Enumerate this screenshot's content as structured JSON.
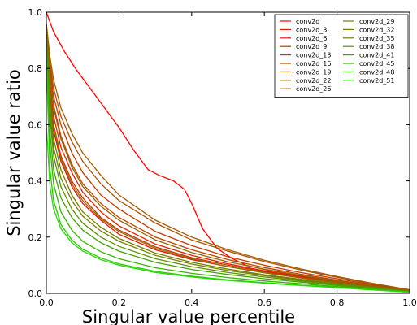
{
  "chart_data": {
    "type": "line",
    "title": "",
    "xlabel": "Singular value percentile",
    "ylabel": "Singular value ratio",
    "xlim": [
      0.0,
      1.0
    ],
    "ylim": [
      0.0,
      1.0
    ],
    "xticks": [
      "0.0",
      "0.2",
      "0.4",
      "0.6",
      "0.8",
      "1.0"
    ],
    "yticks": [
      "0.0",
      "0.2",
      "0.4",
      "0.6",
      "0.8",
      "1.0"
    ],
    "grid": false,
    "legend_position": "top-right",
    "legend_columns": 2,
    "series": [
      {
        "name": "conv2d",
        "color": "#ff0000",
        "points": [
          [
            0,
            1.0
          ],
          [
            0.02,
            0.93
          ],
          [
            0.05,
            0.86
          ],
          [
            0.08,
            0.8
          ],
          [
            0.12,
            0.73
          ],
          [
            0.16,
            0.66
          ],
          [
            0.2,
            0.59
          ],
          [
            0.24,
            0.51
          ],
          [
            0.28,
            0.44
          ],
          [
            0.31,
            0.42
          ],
          [
            0.35,
            0.4
          ],
          [
            0.38,
            0.37
          ],
          [
            0.4,
            0.32
          ],
          [
            0.43,
            0.23
          ],
          [
            0.47,
            0.16
          ],
          [
            0.51,
            0.125
          ],
          [
            0.55,
            0.1
          ],
          [
            0.6,
            0.085
          ],
          [
            0.7,
            0.063
          ],
          [
            0.8,
            0.044
          ],
          [
            0.9,
            0.027
          ],
          [
            1.0,
            0.012
          ]
        ]
      },
      {
        "name": "conv2d_3",
        "color": "#e81500",
        "points": [
          [
            0,
            0.94
          ],
          [
            0.01,
            0.7
          ],
          [
            0.02,
            0.58
          ],
          [
            0.04,
            0.47
          ],
          [
            0.07,
            0.38
          ],
          [
            0.1,
            0.32
          ],
          [
            0.15,
            0.26
          ],
          [
            0.2,
            0.21
          ],
          [
            0.3,
            0.155
          ],
          [
            0.4,
            0.12
          ],
          [
            0.5,
            0.095
          ],
          [
            0.6,
            0.073
          ],
          [
            0.7,
            0.055
          ],
          [
            0.8,
            0.038
          ],
          [
            0.9,
            0.022
          ],
          [
            1.0,
            0.008
          ]
        ]
      },
      {
        "name": "conv2d_6",
        "color": "#dc2200",
        "points": [
          [
            0,
            0.93
          ],
          [
            0.01,
            0.74
          ],
          [
            0.02,
            0.63
          ],
          [
            0.04,
            0.52
          ],
          [
            0.07,
            0.43
          ],
          [
            0.1,
            0.36
          ],
          [
            0.15,
            0.29
          ],
          [
            0.2,
            0.24
          ],
          [
            0.3,
            0.175
          ],
          [
            0.4,
            0.135
          ],
          [
            0.5,
            0.105
          ],
          [
            0.6,
            0.08
          ],
          [
            0.7,
            0.06
          ],
          [
            0.8,
            0.042
          ],
          [
            0.9,
            0.025
          ],
          [
            1.0,
            0.009
          ]
        ]
      },
      {
        "name": "conv2d_9",
        "color": "#d02e00",
        "points": [
          [
            0,
            0.92
          ],
          [
            0.01,
            0.72
          ],
          [
            0.02,
            0.6
          ],
          [
            0.04,
            0.49
          ],
          [
            0.07,
            0.4
          ],
          [
            0.1,
            0.34
          ],
          [
            0.15,
            0.27
          ],
          [
            0.2,
            0.225
          ],
          [
            0.3,
            0.165
          ],
          [
            0.4,
            0.127
          ],
          [
            0.5,
            0.1
          ],
          [
            0.6,
            0.077
          ],
          [
            0.7,
            0.058
          ],
          [
            0.8,
            0.04
          ],
          [
            0.9,
            0.023
          ],
          [
            1.0,
            0.008
          ]
        ]
      },
      {
        "name": "conv2d_13",
        "color": "#c43a00",
        "points": [
          [
            0,
            0.96
          ],
          [
            0.01,
            0.8
          ],
          [
            0.02,
            0.7
          ],
          [
            0.04,
            0.6
          ],
          [
            0.07,
            0.5
          ],
          [
            0.1,
            0.43
          ],
          [
            0.15,
            0.35
          ],
          [
            0.2,
            0.3
          ],
          [
            0.3,
            0.22
          ],
          [
            0.4,
            0.17
          ],
          [
            0.5,
            0.13
          ],
          [
            0.6,
            0.1
          ],
          [
            0.7,
            0.074
          ],
          [
            0.8,
            0.052
          ],
          [
            0.9,
            0.03
          ],
          [
            1.0,
            0.011
          ]
        ]
      },
      {
        "name": "conv2d_16",
        "color": "#b84600",
        "points": [
          [
            0,
            0.95
          ],
          [
            0.01,
            0.78
          ],
          [
            0.02,
            0.67
          ],
          [
            0.04,
            0.56
          ],
          [
            0.07,
            0.46
          ],
          [
            0.1,
            0.39
          ],
          [
            0.15,
            0.32
          ],
          [
            0.2,
            0.27
          ],
          [
            0.3,
            0.2
          ],
          [
            0.4,
            0.155
          ],
          [
            0.5,
            0.12
          ],
          [
            0.6,
            0.092
          ],
          [
            0.7,
            0.068
          ],
          [
            0.8,
            0.047
          ],
          [
            0.9,
            0.027
          ],
          [
            1.0,
            0.01
          ]
        ]
      },
      {
        "name": "conv2d_19",
        "color": "#ac5200",
        "points": [
          [
            0,
            0.95
          ],
          [
            0.01,
            0.82
          ],
          [
            0.02,
            0.73
          ],
          [
            0.04,
            0.63
          ],
          [
            0.07,
            0.54
          ],
          [
            0.1,
            0.47
          ],
          [
            0.15,
            0.39
          ],
          [
            0.2,
            0.33
          ],
          [
            0.3,
            0.25
          ],
          [
            0.4,
            0.19
          ],
          [
            0.5,
            0.15
          ],
          [
            0.6,
            0.113
          ],
          [
            0.7,
            0.083
          ],
          [
            0.8,
            0.057
          ],
          [
            0.9,
            0.033
          ],
          [
            1.0,
            0.012
          ]
        ]
      },
      {
        "name": "conv2d_22",
        "color": "#a05c00",
        "points": [
          [
            0,
            0.96
          ],
          [
            0.01,
            0.84
          ],
          [
            0.02,
            0.76
          ],
          [
            0.04,
            0.66
          ],
          [
            0.07,
            0.57
          ],
          [
            0.1,
            0.5
          ],
          [
            0.15,
            0.42
          ],
          [
            0.2,
            0.35
          ],
          [
            0.3,
            0.26
          ],
          [
            0.4,
            0.2
          ],
          [
            0.5,
            0.155
          ],
          [
            0.6,
            0.118
          ],
          [
            0.7,
            0.087
          ],
          [
            0.8,
            0.06
          ],
          [
            0.9,
            0.035
          ],
          [
            1.0,
            0.013
          ]
        ]
      },
      {
        "name": "conv2d_26",
        "color": "#946600",
        "points": [
          [
            0,
            0.94
          ],
          [
            0.01,
            0.77
          ],
          [
            0.02,
            0.66
          ],
          [
            0.04,
            0.55
          ],
          [
            0.07,
            0.45
          ],
          [
            0.1,
            0.38
          ],
          [
            0.15,
            0.31
          ],
          [
            0.2,
            0.26
          ],
          [
            0.3,
            0.19
          ],
          [
            0.4,
            0.145
          ],
          [
            0.5,
            0.112
          ],
          [
            0.6,
            0.086
          ],
          [
            0.7,
            0.064
          ],
          [
            0.8,
            0.044
          ],
          [
            0.9,
            0.026
          ],
          [
            1.0,
            0.009
          ]
        ]
      },
      {
        "name": "conv2d_29",
        "color": "#887000",
        "points": [
          [
            0,
            0.93
          ],
          [
            0.01,
            0.72
          ],
          [
            0.02,
            0.6
          ],
          [
            0.04,
            0.48
          ],
          [
            0.07,
            0.39
          ],
          [
            0.1,
            0.33
          ],
          [
            0.15,
            0.265
          ],
          [
            0.2,
            0.22
          ],
          [
            0.3,
            0.16
          ],
          [
            0.4,
            0.123
          ],
          [
            0.5,
            0.095
          ],
          [
            0.6,
            0.073
          ],
          [
            0.7,
            0.055
          ],
          [
            0.8,
            0.038
          ],
          [
            0.9,
            0.022
          ],
          [
            1.0,
            0.008
          ]
        ]
      },
      {
        "name": "conv2d_32",
        "color": "#7c7a00",
        "points": [
          [
            0,
            0.92
          ],
          [
            0.01,
            0.68
          ],
          [
            0.02,
            0.55
          ],
          [
            0.04,
            0.44
          ],
          [
            0.07,
            0.35
          ],
          [
            0.1,
            0.29
          ],
          [
            0.15,
            0.235
          ],
          [
            0.2,
            0.195
          ],
          [
            0.3,
            0.143
          ],
          [
            0.4,
            0.11
          ],
          [
            0.5,
            0.086
          ],
          [
            0.6,
            0.066
          ],
          [
            0.7,
            0.05
          ],
          [
            0.8,
            0.035
          ],
          [
            0.9,
            0.021
          ],
          [
            1.0,
            0.007
          ]
        ]
      },
      {
        "name": "conv2d_35",
        "color": "#708400",
        "points": [
          [
            0,
            0.91
          ],
          [
            0.01,
            0.65
          ],
          [
            0.02,
            0.52
          ],
          [
            0.04,
            0.41
          ],
          [
            0.07,
            0.33
          ],
          [
            0.1,
            0.275
          ],
          [
            0.15,
            0.222
          ],
          [
            0.2,
            0.185
          ],
          [
            0.3,
            0.135
          ],
          [
            0.4,
            0.104
          ],
          [
            0.5,
            0.081
          ],
          [
            0.6,
            0.063
          ],
          [
            0.7,
            0.047
          ],
          [
            0.8,
            0.033
          ],
          [
            0.9,
            0.02
          ],
          [
            1.0,
            0.007
          ]
        ]
      },
      {
        "name": "conv2d_38",
        "color": "#5c9000",
        "points": [
          [
            0,
            0.9
          ],
          [
            0.01,
            0.62
          ],
          [
            0.02,
            0.49
          ],
          [
            0.04,
            0.38
          ],
          [
            0.07,
            0.3
          ],
          [
            0.1,
            0.25
          ],
          [
            0.15,
            0.2
          ],
          [
            0.2,
            0.167
          ],
          [
            0.3,
            0.123
          ],
          [
            0.4,
            0.095
          ],
          [
            0.5,
            0.074
          ],
          [
            0.6,
            0.058
          ],
          [
            0.7,
            0.044
          ],
          [
            0.8,
            0.031
          ],
          [
            0.9,
            0.019
          ],
          [
            1.0,
            0.006
          ]
        ]
      },
      {
        "name": "conv2d_41",
        "color": "#48a000",
        "points": [
          [
            0,
            0.88
          ],
          [
            0.01,
            0.57
          ],
          [
            0.02,
            0.44
          ],
          [
            0.04,
            0.34
          ],
          [
            0.07,
            0.27
          ],
          [
            0.1,
            0.225
          ],
          [
            0.15,
            0.18
          ],
          [
            0.2,
            0.15
          ],
          [
            0.3,
            0.11
          ],
          [
            0.4,
            0.085
          ],
          [
            0.5,
            0.067
          ],
          [
            0.6,
            0.052
          ],
          [
            0.7,
            0.04
          ],
          [
            0.8,
            0.028
          ],
          [
            0.9,
            0.017
          ],
          [
            1.0,
            0.006
          ]
        ]
      },
      {
        "name": "conv2d_45",
        "color": "#38b400",
        "points": [
          [
            0,
            0.86
          ],
          [
            0.01,
            0.52
          ],
          [
            0.02,
            0.39
          ],
          [
            0.04,
            0.29
          ],
          [
            0.07,
            0.225
          ],
          [
            0.1,
            0.185
          ],
          [
            0.15,
            0.148
          ],
          [
            0.2,
            0.123
          ],
          [
            0.3,
            0.091
          ],
          [
            0.4,
            0.071
          ],
          [
            0.5,
            0.056
          ],
          [
            0.6,
            0.044
          ],
          [
            0.7,
            0.034
          ],
          [
            0.8,
            0.024
          ],
          [
            0.9,
            0.015
          ],
          [
            1.0,
            0.005
          ]
        ]
      },
      {
        "name": "conv2d_48",
        "color": "#2ac800",
        "points": [
          [
            0,
            0.82
          ],
          [
            0.01,
            0.44
          ],
          [
            0.02,
            0.33
          ],
          [
            0.04,
            0.245
          ],
          [
            0.07,
            0.19
          ],
          [
            0.1,
            0.157
          ],
          [
            0.15,
            0.126
          ],
          [
            0.2,
            0.105
          ],
          [
            0.3,
            0.078
          ],
          [
            0.4,
            0.061
          ],
          [
            0.5,
            0.048
          ],
          [
            0.6,
            0.038
          ],
          [
            0.7,
            0.029
          ],
          [
            0.8,
            0.021
          ],
          [
            0.9,
            0.013
          ],
          [
            1.0,
            0.004
          ]
        ]
      },
      {
        "name": "conv2d_51",
        "color": "#22dc00",
        "points": [
          [
            0,
            0.6
          ],
          [
            0.01,
            0.38
          ],
          [
            0.02,
            0.3
          ],
          [
            0.04,
            0.23
          ],
          [
            0.07,
            0.18
          ],
          [
            0.1,
            0.15
          ],
          [
            0.15,
            0.12
          ],
          [
            0.2,
            0.1
          ],
          [
            0.3,
            0.074
          ],
          [
            0.4,
            0.058
          ],
          [
            0.5,
            0.046
          ],
          [
            0.6,
            0.036
          ],
          [
            0.7,
            0.028
          ],
          [
            0.8,
            0.02
          ],
          [
            0.9,
            0.012
          ],
          [
            1.0,
            0.004
          ]
        ]
      }
    ]
  }
}
